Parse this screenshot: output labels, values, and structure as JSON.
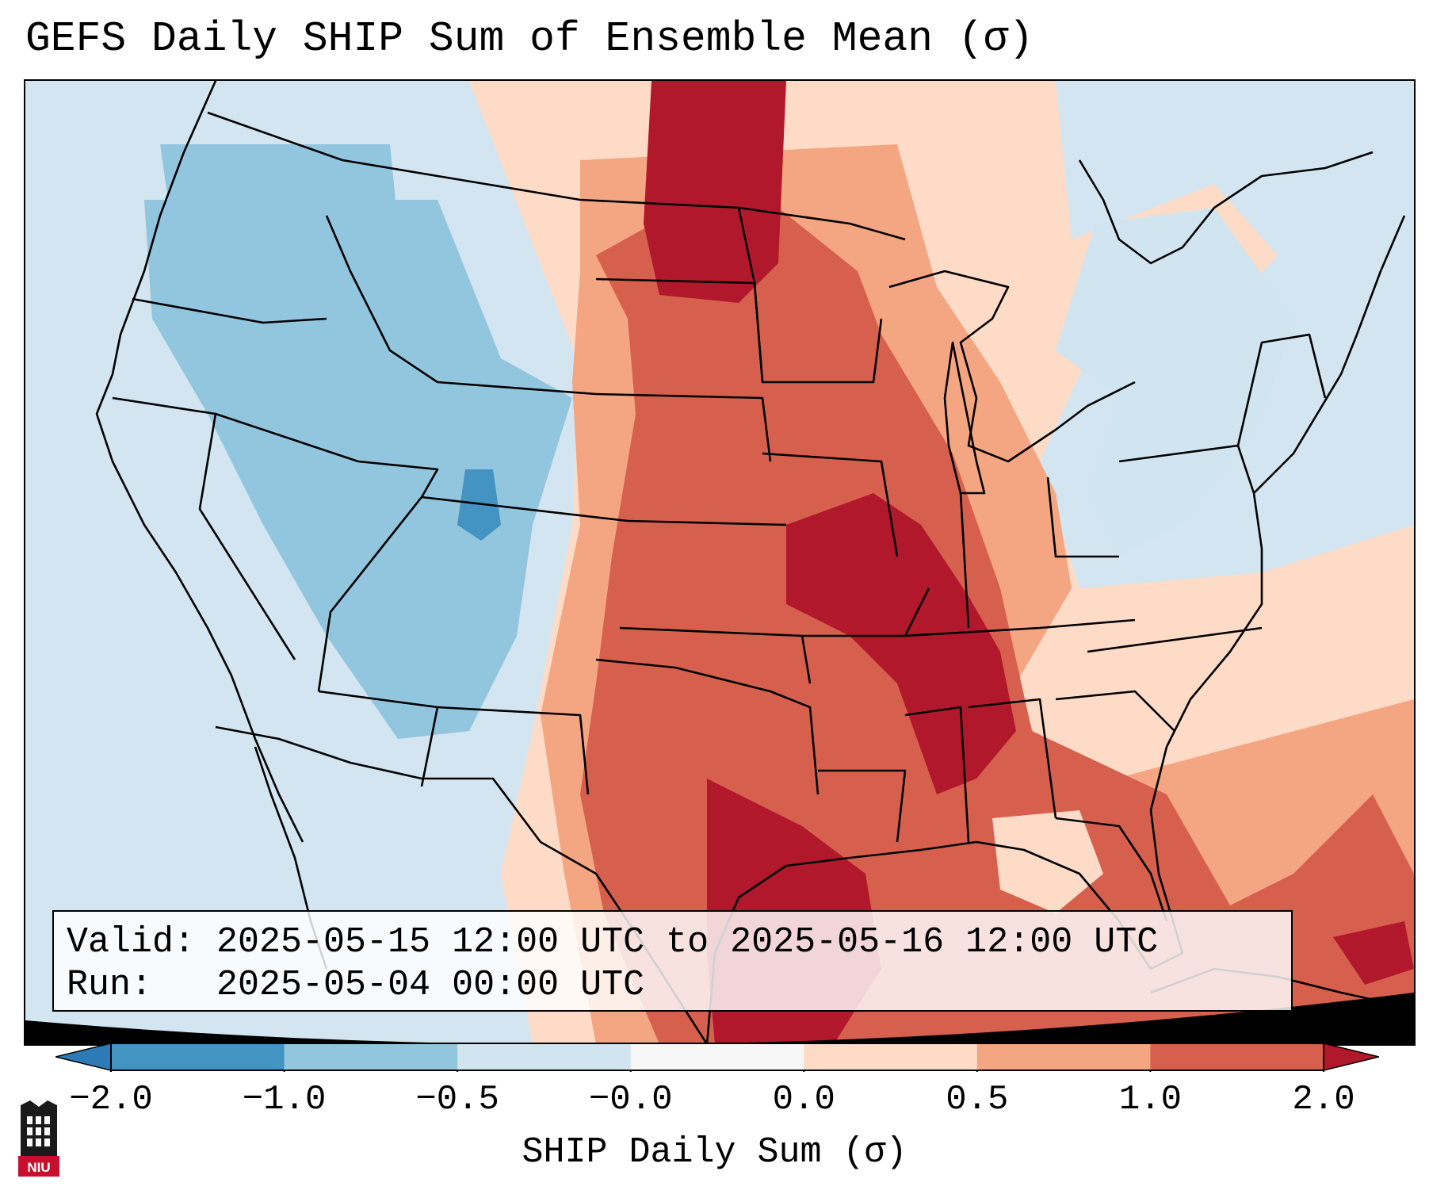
{
  "title": "GEFS Daily SHIP Sum of Ensemble Mean (σ)",
  "info": {
    "valid_line": "Valid: 2025-05-15 12:00 UTC to 2025-05-16 12:00 UTC",
    "run_line": "Run:   2025-05-04 00:00 UTC"
  },
  "colorbar": {
    "label": "SHIP Daily Sum (σ)",
    "ticks": [
      "−2.0",
      "−1.0",
      "−0.5",
      "−0.0",
      "0.0",
      "0.5",
      "1.0",
      "2.0"
    ],
    "colors": [
      "#2c7bb6",
      "#4393c3",
      "#92c5de",
      "#d1e5f0",
      "#f7f7f7",
      "#fddbc7",
      "#f4a582",
      "#d6604d",
      "#b2182b"
    ],
    "extend": "both"
  },
  "logo": {
    "text": "NIU",
    "colors": {
      "red": "#c8102e",
      "black": "#1a1a1a"
    }
  },
  "map": {
    "region": "Contiguous United States",
    "ocean_color": "#d3e5f0",
    "outside_domain_color": "#ffffff",
    "field_colors": {
      "strong_negative": "#4393c3",
      "negative": "#92c5de",
      "near_zero_negative": "#d1e5f0",
      "near_zero_positive": "#fddbc7",
      "positive": "#f4a582",
      "strong_positive": "#d6604d",
      "extreme_positive": "#b2182b"
    }
  }
}
